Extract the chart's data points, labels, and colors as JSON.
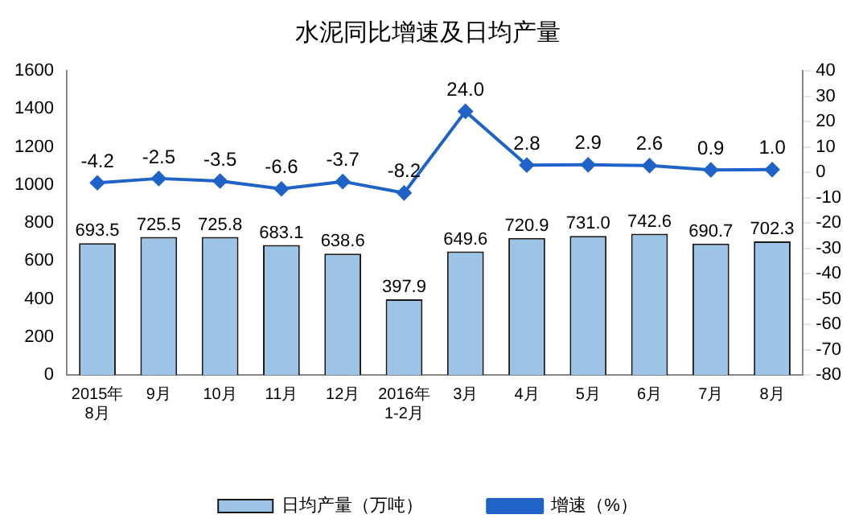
{
  "chart_data": {
    "type": "bar",
    "title": "水泥同比增速及日均产量",
    "categories": [
      "2015年\n8月",
      "9月",
      "10月",
      "11月",
      "12月",
      "2016年\n1-2月",
      "3月",
      "4月",
      "5月",
      "6月",
      "7月",
      "8月"
    ],
    "series": [
      {
        "name": "日均产量（万吨）",
        "color": "#9dc3e6",
        "values": [
          693.5,
          725.5,
          725.8,
          683.1,
          638.6,
          397.9,
          649.6,
          720.9,
          731.0,
          742.6,
          690.7,
          702.3
        ],
        "value_labels": [
          "693.5",
          "725.5",
          "725.8",
          "683.1",
          "638.6",
          "397.9",
          "649.6",
          "720.9",
          "731.0",
          "742.6",
          "690.7",
          "702.3"
        ]
      },
      {
        "name": "增速（%）",
        "type": "line",
        "axis": "y2",
        "color": "#1f62c8",
        "values": [
          -4.2,
          -2.5,
          -3.5,
          -6.6,
          -3.7,
          -8.2,
          24.0,
          2.8,
          2.9,
          2.6,
          0.9,
          1.0
        ],
        "value_labels": [
          "-4.2",
          "-2.5",
          "-3.5",
          "-6.6",
          "-3.7",
          "-8.2",
          "24.0",
          "2.8",
          "2.9",
          "2.6",
          "0.9",
          "1.0"
        ]
      }
    ],
    "ylim": [
      0,
      1600
    ],
    "yticks": [
      0,
      200,
      400,
      600,
      800,
      1000,
      1200,
      1400,
      1600
    ],
    "y2lim": [
      -80,
      40
    ],
    "y2ticks": [
      -80,
      -70,
      -60,
      -50,
      -40,
      -30,
      -20,
      -10,
      0,
      10,
      20,
      30,
      40
    ],
    "legend": "bottom",
    "grid": false,
    "marker": "diamond",
    "line_style": "solid"
  }
}
